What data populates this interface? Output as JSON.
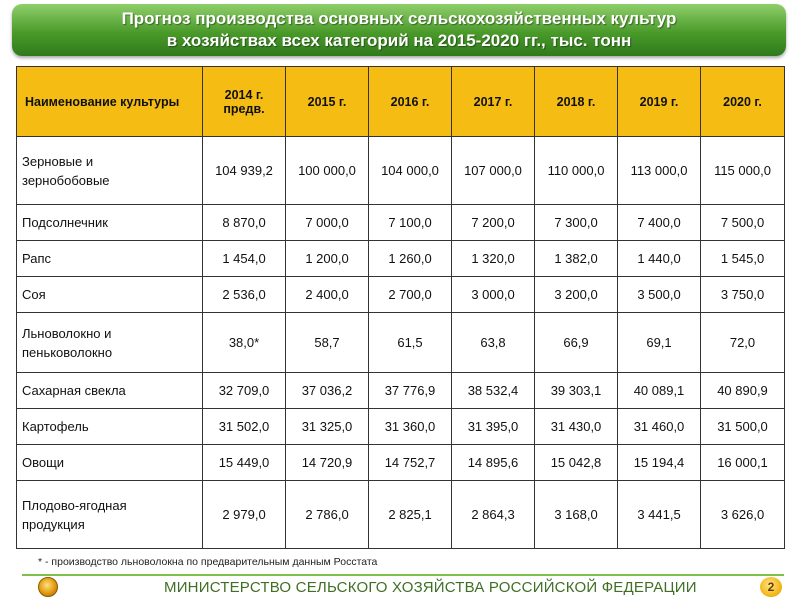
{
  "title": {
    "line1": "Прогноз производства основных сельскохозяйственных культур",
    "line2": "в хозяйствах всех категорий на 2015-2020 гг., тыс. тонн"
  },
  "table": {
    "headers": [
      "Наименование культуры",
      "2014 г.\nпредв.",
      "2015 г.",
      "2016 г.",
      "2017 г.",
      "2018 г.",
      "2019 г.",
      "2020 г."
    ],
    "rows": [
      {
        "name": "Зерновые и\nзернобобовые",
        "values": [
          "104 939,2",
          "100 000,0",
          "104 000,0",
          "107 000,0",
          "110 000,0",
          "113 000,0",
          "115 000,0"
        ]
      },
      {
        "name": "Подсолнечник",
        "values": [
          "8 870,0",
          "7 000,0",
          "7 100,0",
          "7 200,0",
          "7 300,0",
          "7 400,0",
          "7 500,0"
        ]
      },
      {
        "name": "Рапс",
        "values": [
          "1 454,0",
          "1 200,0",
          "1 260,0",
          "1 320,0",
          "1 382,0",
          "1 440,0",
          "1 545,0"
        ]
      },
      {
        "name": "Соя",
        "values": [
          "2 536,0",
          "2 400,0",
          "2 700,0",
          "3 000,0",
          "3 200,0",
          "3 500,0",
          "3 750,0"
        ]
      },
      {
        "name": "Льноволокно и\nпеньковолокно",
        "values": [
          "38,0*",
          "58,7",
          "61,5",
          "63,8",
          "66,9",
          "69,1",
          "72,0"
        ]
      },
      {
        "name": "Сахарная свекла",
        "values": [
          "32 709,0",
          "37 036,2",
          "37 776,9",
          "38 532,4",
          "39 303,1",
          "40 089,1",
          "40 890,9"
        ]
      },
      {
        "name": "Картофель",
        "values": [
          "31 502,0",
          "31 325,0",
          "31 360,0",
          "31 395,0",
          "31 430,0",
          "31 460,0",
          "31 500,0"
        ]
      },
      {
        "name": "Овощи",
        "values": [
          "15 449,0",
          "14 720,9",
          "14 752,7",
          "14 895,6",
          "15 042,8",
          "15 194,4",
          "16 000,1"
        ]
      },
      {
        "name": "Плодово-ягодная\nпродукция",
        "values": [
          "2 979,0",
          "2 786,0",
          "2 825,1",
          "2 864,3",
          "3 168,0",
          "3 441,5",
          "3 626,0"
        ]
      }
    ]
  },
  "footnote": "* - производство льноволокна по предварительным данным Росстата",
  "footer": {
    "ministry": "МИНИСТЕРСТВО СЕЛЬСКОГО ХОЗЯЙСТВА РОССИЙСКОЙ ФЕДЕРАЦИИ",
    "page_number": "2",
    "emblem_icon": "ministry-emblem-icon"
  },
  "colors": {
    "header_bg": "#f5bd13",
    "banner_green": "#4a9a2a",
    "ministry_text": "#3f6f24"
  }
}
